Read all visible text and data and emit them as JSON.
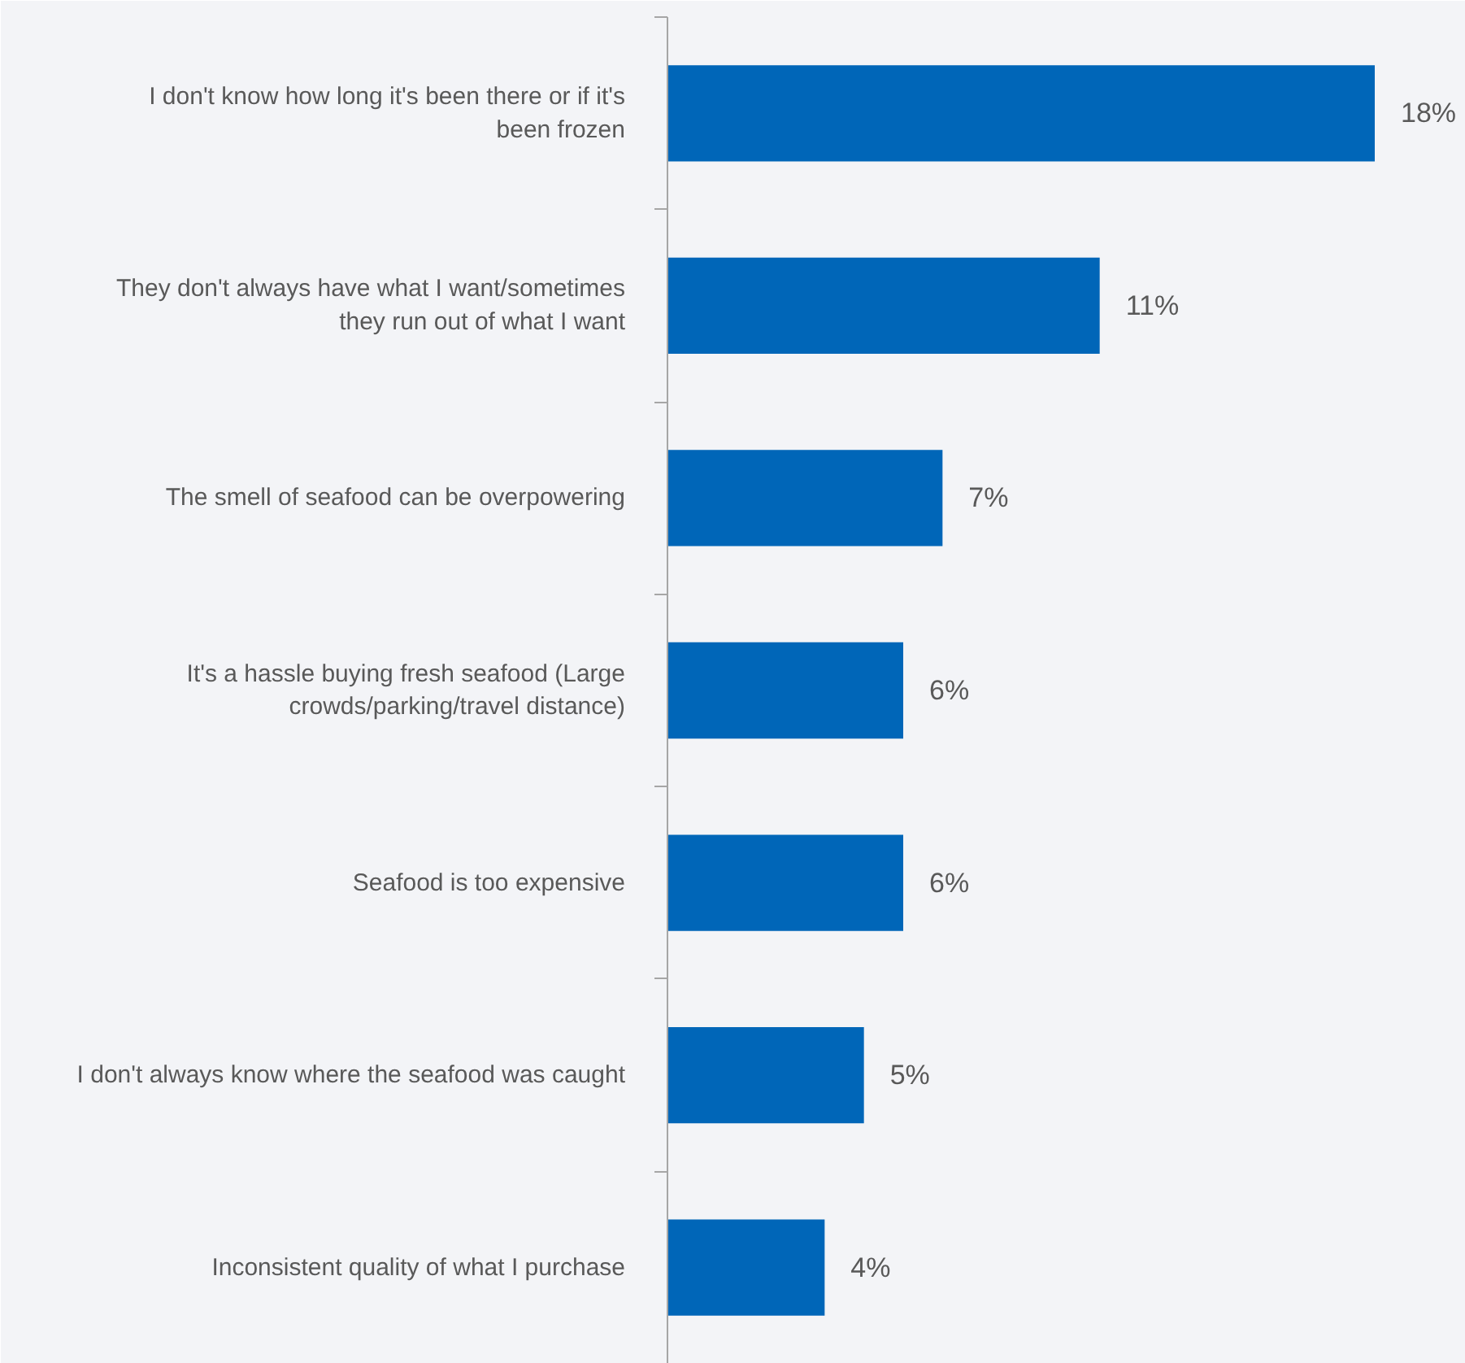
{
  "chart_data": {
    "type": "bar",
    "orientation": "horizontal",
    "categories": [
      "I don't know how long it's been there or if it's been frozen",
      "They don't always have what I want/sometimes they run out of what I want",
      "The smell of seafood can be overpowering",
      "It's a hassle buying fresh seafood (Large crowds/parking/travel distance)",
      "Seafood is too expensive",
      "I don't always know where the seafood was caught",
      "Inconsistent quality of what I purchase"
    ],
    "values": [
      18,
      11,
      7,
      6,
      6,
      5,
      4
    ],
    "color": "#0066b8",
    "data_labels": true,
    "value_labels": [
      "18%",
      "11%",
      "7%",
      "6%",
      "6%",
      "5%",
      "4%"
    ]
  }
}
